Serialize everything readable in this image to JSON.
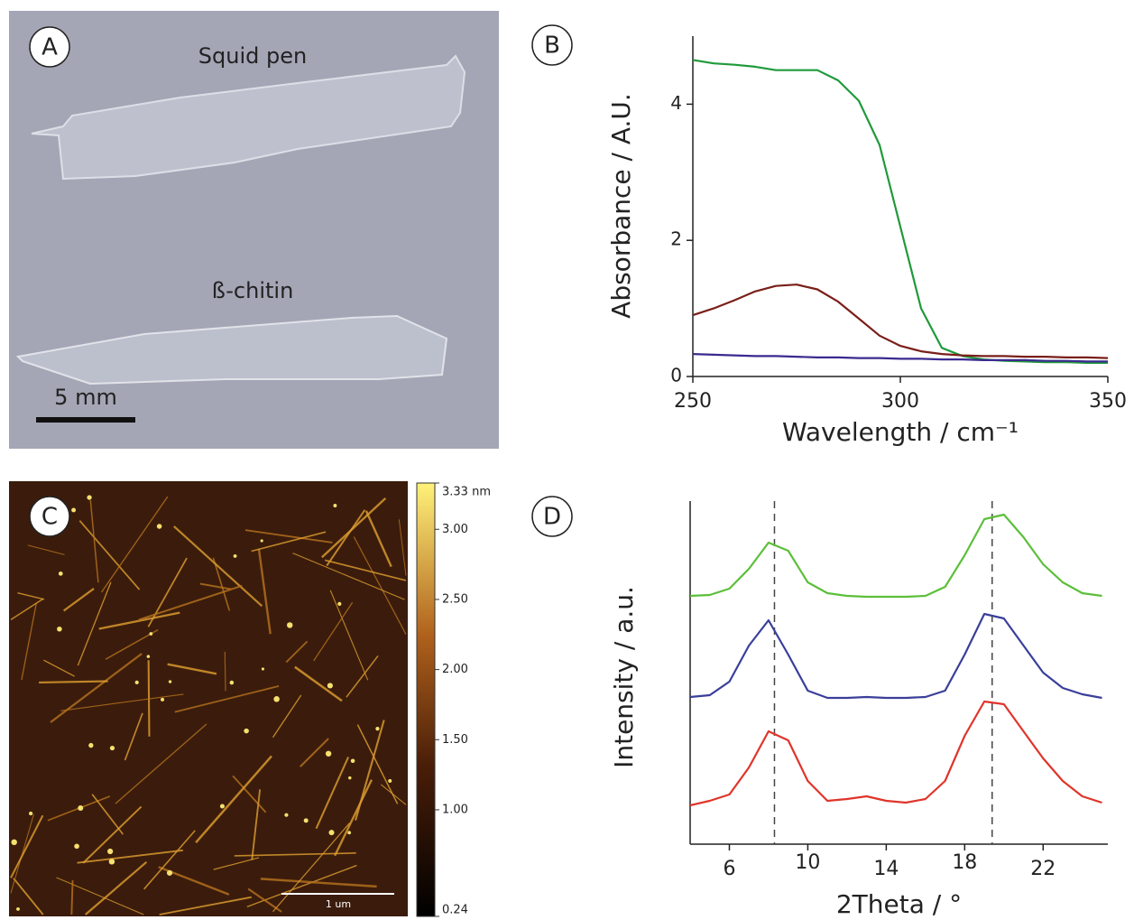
{
  "panels": {
    "A": {
      "label": "A",
      "top_text": "Squid pen",
      "bottom_text": "ß-chitin",
      "scale_bar": "5 mm"
    },
    "C": {
      "label": "C",
      "scale_bar": "1 um",
      "colorbar": {
        "range": [
          0.24,
          3.33
        ],
        "ticks": [
          {
            "value": 3.33,
            "label": "3.33 nm"
          },
          {
            "value": 3,
            "label": "3.00"
          },
          {
            "value": 2.5,
            "label": "2.50"
          },
          {
            "value": 2,
            "label": "2.00"
          },
          {
            "value": 1.5,
            "label": "1.50"
          },
          {
            "value": 1,
            "label": "1.00"
          },
          0.24
        ]
      }
    }
  },
  "chart_data": [
    {
      "type": "line",
      "panel_label": "B",
      "x_label": "Wavelength / cm⁻¹",
      "y_label": "Absorbance / A.U.",
      "x": [
        250,
        255,
        260,
        265,
        270,
        275,
        280,
        285,
        290,
        295,
        300,
        305,
        310,
        315,
        320,
        325,
        330,
        335,
        340,
        345,
        350
      ],
      "xlim": [
        250,
        350
      ],
      "xticks": [
        250,
        300,
        350
      ],
      "ylim": [
        0,
        5
      ],
      "yticks": [
        0,
        2,
        4
      ],
      "series": [
        {
          "color": "#1f9a3a",
          "values": [
            4.65,
            4.6,
            4.58,
            4.55,
            4.5,
            4.5,
            4.5,
            4.35,
            4.05,
            3.4,
            2.2,
            1.0,
            0.42,
            0.3,
            0.25,
            0.23,
            0.22,
            0.21,
            0.21,
            0.2,
            0.2
          ]
        },
        {
          "color": "#7a1f1a",
          "values": [
            0.9,
            1.0,
            1.12,
            1.25,
            1.33,
            1.35,
            1.28,
            1.1,
            0.85,
            0.6,
            0.45,
            0.37,
            0.33,
            0.31,
            0.3,
            0.3,
            0.29,
            0.29,
            0.28,
            0.28,
            0.27
          ]
        },
        {
          "color": "#3a2a8f",
          "values": [
            0.33,
            0.32,
            0.31,
            0.3,
            0.3,
            0.29,
            0.28,
            0.28,
            0.27,
            0.27,
            0.26,
            0.26,
            0.25,
            0.25,
            0.24,
            0.24,
            0.24,
            0.23,
            0.23,
            0.22,
            0.22
          ]
        }
      ]
    },
    {
      "type": "line",
      "panel_label": "D",
      "x_label": "2Theta / °",
      "y_label": "Intensity / a.u.",
      "x": [
        4,
        5,
        6,
        7,
        8,
        9,
        10,
        11,
        12,
        13,
        14,
        15,
        16,
        17,
        18,
        19,
        20,
        21,
        22,
        23,
        24,
        25
      ],
      "xlim": [
        4,
        25.3
      ],
      "xticks": [
        6,
        10,
        14,
        18,
        22
      ],
      "ylim": [
        0,
        38
      ],
      "reference_lines": [
        8.3,
        19.4
      ],
      "series": [
        {
          "color": "#5cbf3a",
          "values": [
            27.5,
            27.6,
            28.3,
            30.5,
            33.4,
            32.5,
            29,
            27.8,
            27.5,
            27.4,
            27.4,
            27.4,
            27.5,
            28.5,
            32,
            36,
            36.5,
            34,
            31,
            29,
            27.8,
            27.5
          ]
        },
        {
          "color": "#3a3f9a",
          "values": [
            16.3,
            16.5,
            18,
            22,
            24.8,
            21,
            17,
            16.2,
            16.2,
            16.3,
            16.2,
            16.2,
            16.3,
            17,
            21,
            25.5,
            25,
            22,
            19,
            17.3,
            16.6,
            16.2
          ]
        },
        {
          "color": "#e0342a",
          "values": [
            4.3,
            4.8,
            5.5,
            8.5,
            12.5,
            11.5,
            7,
            4.8,
            5,
            5.3,
            4.8,
            4.6,
            5,
            7,
            12,
            15.8,
            15.5,
            12.5,
            9.5,
            7,
            5.3,
            4.6
          ]
        }
      ]
    }
  ]
}
